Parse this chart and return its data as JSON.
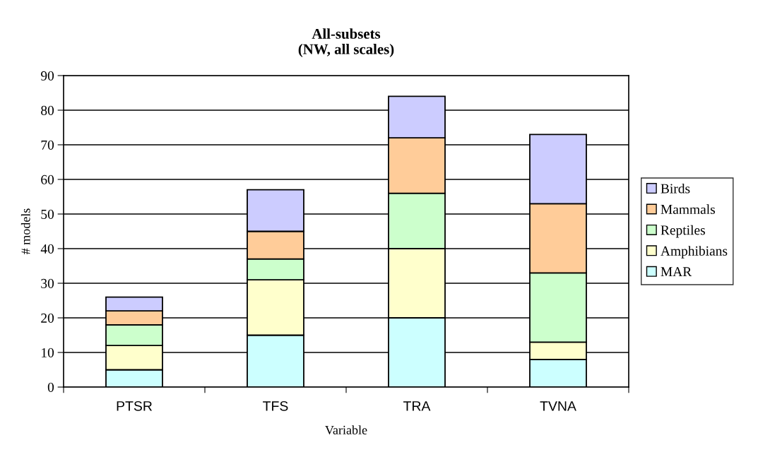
{
  "chart_data": {
    "type": "bar",
    "title": "All-subsets\n(NW, all scales)",
    "xlabel": "Variable",
    "ylabel": "# models",
    "categories": [
      "PTSR",
      "TFS",
      "TRA",
      "TVNA"
    ],
    "stacked": true,
    "series": [
      {
        "name": "MAR",
        "color": "#ccffff",
        "values": [
          5,
          15,
          20,
          8
        ]
      },
      {
        "name": "Amphibians",
        "color": "#ffffcc",
        "values": [
          7,
          16,
          20,
          5
        ]
      },
      {
        "name": "Reptiles",
        "color": "#ccffcc",
        "values": [
          6,
          6,
          16,
          20
        ]
      },
      {
        "name": "Mammals",
        "color": "#ffcc99",
        "values": [
          4,
          8,
          16,
          20
        ]
      },
      {
        "name": "Birds",
        "color": "#ccccff",
        "values": [
          4,
          12,
          12,
          20
        ]
      }
    ],
    "ylim": [
      0,
      90
    ],
    "yticks": [
      0,
      10,
      20,
      30,
      40,
      50,
      60,
      70,
      80,
      90
    ],
    "grid": "y",
    "legend": "right"
  }
}
